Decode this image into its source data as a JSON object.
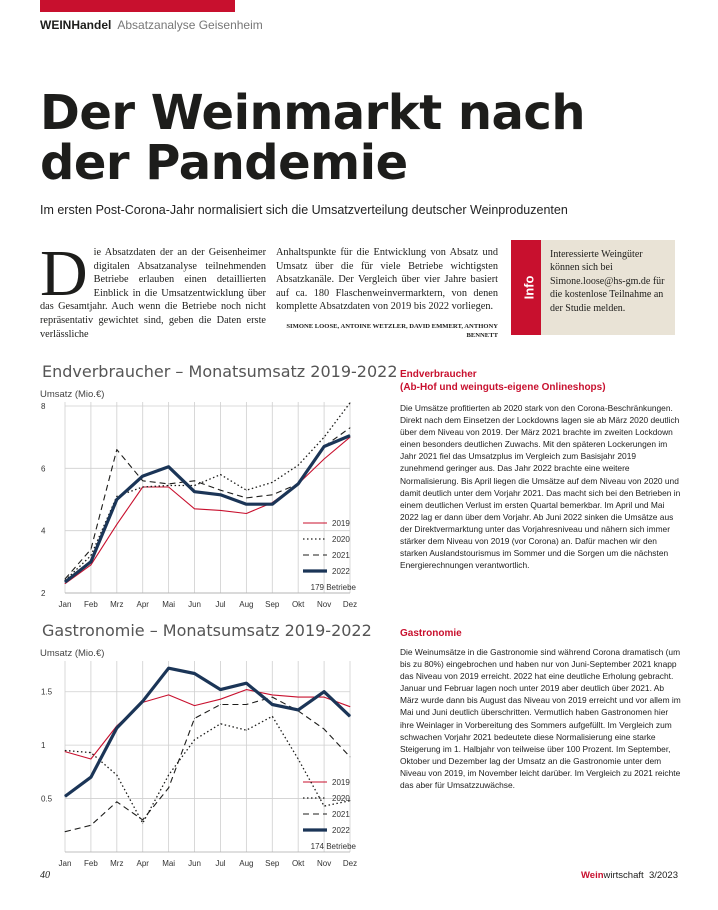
{
  "header": {
    "brand": "WEINHandel",
    "section": "Absatzanalyse Geisenheim"
  },
  "title": "Der Weinmarkt nach der Pandemie",
  "lead": "Im ersten Post-Corona-Jahr normalisiert sich die Umsatzverteilung deutscher Weinproduzenten",
  "intro": {
    "dropcap": "D",
    "col1": "ie Absatzdaten der an der Geisenheimer digitalen Absatzanalyse teilnehmenden Betriebe erlauben einen detaillierten Einblick in die Umsatzentwicklung über das Gesamtjahr. Auch wenn die Betriebe noch nicht repräsentativ gewichtet sind, geben die Daten erste verlässliche",
    "col2": "Anhaltspunkte für die Entwicklung von Absatz und Umsatz über die für viele Betriebe wichtigsten Absatzkanäle. Der Vergleich über vier Jahre basiert auf ca. 180 Flaschenweinvermarktern, von denen komplette Absatzdaten von 2019 bis 2022 vorliegen.",
    "authors": "SIMONE LOOSE, ANTOINE WETZLER, DAVID EMMERT, ANTHONY BENNETT"
  },
  "info": {
    "tab": "Info",
    "text": "Interessierte Weingüter können sich bei Simone.loose@hs-gm.de für die kostenlose Teilnahme an der Studie melden."
  },
  "sections": [
    {
      "heading": "Endverbraucher",
      "subheading": "(Ab-Hof und weinguts-eigene Onlineshops)",
      "body": "Die Umsätze profitierten ab 2020 stark von den Corona-Beschränkungen. Direkt nach dem Einsetzen der Lockdowns lagen sie ab März 2020 deutlich über dem Niveau von 2019. Der März 2021 brachte im zweiten Lockdown einen besonders deutlichen Zuwachs. Mit den späteren Lockerungen im Jahr 2021 fiel das Umsatzplus im Vergleich zum Basisjahr 2019 zunehmend geringer aus. Das Jahr 2022 brachte eine weitere Normalisierung. Bis April liegen die Umsätze auf dem Niveau von 2020 und damit deutlich unter dem Vorjahr 2021. Das macht sich bei den Betrieben in einem deutlichen Verlust im ersten Quartal bemerkbar. Im April und Mai 2022 lag er dann über dem Vorjahr. Ab Juni 2022 sinken die Umsätze aus der Direktvermarktung unter das Vorjahresniveau und nähern sich immer stärker dem Niveau von 2019 (vor Corona) an. Dafür machen wir den starken Auslandstourismus im Sommer und die Sorgen um die nächsten Energierechnungen verantwortlich."
    },
    {
      "heading": "Gastronomie",
      "subheading": "",
      "body": "Die Weinumsätze in die Gastronomie sind während Corona dramatisch (um bis zu 80%) eingebrochen und haben nur von Juni-September 2021 knapp das Niveau von 2019 erreicht. 2022 hat eine deutliche Erholung gebracht. Januar und Februar lagen noch unter 2019 aber deutlich über 2021. Ab März wurde dann bis August das Niveau von 2019 erreicht und vor allem im Mai und Juni deutlich überschritten. Vermutlich haben Gastronomen hier ihre Weinlager in Vorbereitung des Sommers aufgefüllt. Im Vergleich zum schwachen Vorjahr 2021 bedeutete diese Normalisierung eine starke Steigerung im 1. Halbjahr von teilweise über 100 Prozent. Im September, Oktober und Dezember lag der Umsatz an die Gastronomie unter dem Niveau von 2019, im November leicht darüber. Im Vergleich zu 2021 reichte das aber für Umsatzzuwächse."
    }
  ],
  "chart_data": [
    {
      "type": "line",
      "title": "Endverbraucher – Monatsumsatz 2019-2022",
      "ylabel": "Umsatz (Mio.€)",
      "note": "179 Betriebe",
      "ylim": [
        2,
        8
      ],
      "yticks": [
        2,
        4,
        6,
        8
      ],
      "categories": [
        "Jan",
        "Feb",
        "Mrz",
        "Apr",
        "Mai",
        "Jun",
        "Jul",
        "Aug",
        "Sep",
        "Okt",
        "Nov",
        "Dez"
      ],
      "series": [
        {
          "name": "2019",
          "style": "solid-red",
          "values": [
            2.3,
            2.9,
            4.2,
            5.4,
            5.4,
            4.7,
            4.65,
            4.55,
            4.9,
            5.5,
            6.3,
            7.0
          ]
        },
        {
          "name": "2020",
          "style": "dotted",
          "values": [
            2.4,
            3.2,
            5.1,
            5.4,
            5.45,
            5.45,
            5.8,
            5.3,
            5.55,
            6.1,
            7.0,
            8.1
          ]
        },
        {
          "name": "2021",
          "style": "dashed",
          "values": [
            2.45,
            3.4,
            6.6,
            5.6,
            5.5,
            5.6,
            5.3,
            5.05,
            5.15,
            5.5,
            6.7,
            7.3
          ]
        },
        {
          "name": "2022",
          "style": "thick-navy",
          "values": [
            2.35,
            3.0,
            5.0,
            5.75,
            6.05,
            5.25,
            5.15,
            4.85,
            4.85,
            5.5,
            6.7,
            7.05
          ]
        }
      ]
    },
    {
      "type": "line",
      "title": "Gastronomie – Monatsumsatz 2019-2022",
      "ylabel": "Umsatz (Mio.€)",
      "note": "174 Betriebe",
      "ylim": [
        0,
        1.75
      ],
      "yticks": [
        0.5,
        1,
        1.5
      ],
      "ytick_labels": [
        "0.5",
        "1",
        "1.5"
      ],
      "categories": [
        "Jan",
        "Feb",
        "Mrz",
        "Apr",
        "Mai",
        "Jun",
        "Jul",
        "Aug",
        "Sep",
        "Okt",
        "Nov",
        "Dez"
      ],
      "series": [
        {
          "name": "2019",
          "style": "solid-red",
          "values": [
            0.94,
            0.87,
            1.18,
            1.4,
            1.47,
            1.37,
            1.43,
            1.52,
            1.47,
            1.45,
            1.45,
            1.36
          ]
        },
        {
          "name": "2020",
          "style": "dotted",
          "values": [
            0.95,
            0.93,
            0.72,
            0.27,
            0.72,
            1.05,
            1.2,
            1.14,
            1.27,
            0.87,
            0.43,
            0.48
          ]
        },
        {
          "name": "2021",
          "style": "dashed",
          "values": [
            0.19,
            0.25,
            0.47,
            0.3,
            0.6,
            1.25,
            1.38,
            1.38,
            1.45,
            1.32,
            1.15,
            0.89
          ]
        },
        {
          "name": "2022",
          "style": "thick-navy",
          "values": [
            0.52,
            0.7,
            1.16,
            1.41,
            1.72,
            1.67,
            1.52,
            1.58,
            1.38,
            1.33,
            1.5,
            1.27
          ]
        }
      ]
    }
  ],
  "footer": {
    "page": "40",
    "brand_bold": "Wein",
    "brand_rest": "wirtschaft",
    "issue": "3/2023"
  }
}
